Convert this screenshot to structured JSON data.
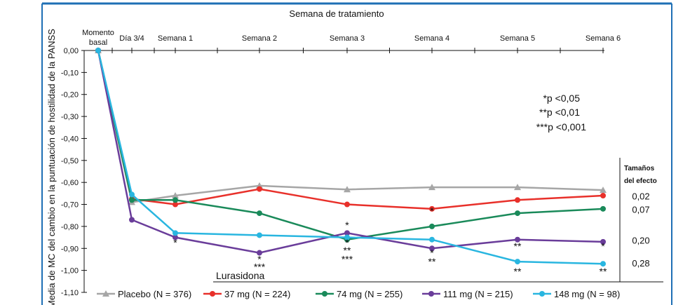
{
  "chart_data": {
    "type": "line",
    "xlabel_top": "Semana de tratamiento",
    "ylabel": "Media de MC del cambio en la puntuación de hostilidad de la PANSS",
    "x": [
      "Momento basal",
      "Día 3/4",
      "Semana 1",
      "Semana 2",
      "Semana 3",
      "Semana 4",
      "Semana 5",
      "Semana 6"
    ],
    "ylim": [
      -1.1,
      0.0
    ],
    "yticks": [
      "0,00",
      "-0,10",
      "-0,20",
      "-0,30",
      "-0,40",
      "-0,50",
      "-0,60",
      "-0,70",
      "-0,80",
      "-0,90",
      "-1,00",
      "-1,10"
    ],
    "series": [
      {
        "name": "Placebo (N = 376)",
        "color": "#a6a6a6",
        "marker": "triangle",
        "values": [
          0.0,
          -0.69,
          -0.66,
          -0.615,
          -0.632,
          -0.622,
          -0.622,
          -0.635
        ]
      },
      {
        "name": "37 mg (N = 224)",
        "color": "#e8302a",
        "marker": "circle",
        "values": [
          0.0,
          -0.675,
          -0.7,
          -0.63,
          -0.7,
          -0.72,
          -0.68,
          -0.66
        ]
      },
      {
        "name": "74 mg (N = 255)",
        "color": "#1a8a5a",
        "marker": "circle",
        "values": [
          0.0,
          -0.68,
          -0.68,
          -0.74,
          -0.86,
          -0.8,
          -0.74,
          -0.72
        ]
      },
      {
        "name": "111 mg (N = 215)",
        "color": "#6a3d9a",
        "marker": "circle",
        "values": [
          0.0,
          -0.77,
          -0.85,
          -0.92,
          -0.83,
          -0.9,
          -0.86,
          -0.87
        ]
      },
      {
        "name": "148 mg (N = 98)",
        "color": "#29b6e0",
        "marker": "circle",
        "values": [
          0.0,
          -0.655,
          -0.83,
          -0.84,
          -0.85,
          -0.86,
          -0.96,
          -0.97
        ]
      }
    ],
    "significance_marks": [
      {
        "x_index": 2,
        "y": -0.89,
        "label": "*"
      },
      {
        "x_index": 3,
        "y": -0.965,
        "label": "*"
      },
      {
        "x_index": 3,
        "y": -1.0,
        "label": "***"
      },
      {
        "x_index": 4,
        "y": -0.81,
        "label": "*"
      },
      {
        "x_index": 4,
        "y": -0.89,
        "label": "*"
      },
      {
        "x_index": 4,
        "y": -0.925,
        "label": "**"
      },
      {
        "x_index": 4,
        "y": -0.965,
        "label": "***"
      },
      {
        "x_index": 5,
        "y": -0.745,
        "label": "*"
      },
      {
        "x_index": 5,
        "y": -0.935,
        "label": "*"
      },
      {
        "x_index": 5,
        "y": -0.975,
        "label": "**"
      },
      {
        "x_index": 6,
        "y": -0.905,
        "label": "**"
      },
      {
        "x_index": 6,
        "y": -1.02,
        "label": "**"
      },
      {
        "x_index": 7,
        "y": -0.905,
        "label": "*"
      },
      {
        "x_index": 7,
        "y": -1.02,
        "label": "**"
      }
    ],
    "pvalue_legend": [
      "*p <0,05",
      "**p <0,01",
      "***p <0,001"
    ],
    "effect_sizes_title": "Tamaños del efecto",
    "effect_sizes": [
      {
        "value": "0,02",
        "y": -0.665
      },
      {
        "value": "0,07",
        "y": -0.725
      },
      {
        "value": "0,20",
        "y": -0.865
      },
      {
        "value": "0,28",
        "y": -0.97
      }
    ],
    "bracket_label": "Lurasidona",
    "legend_position": "bottom"
  }
}
